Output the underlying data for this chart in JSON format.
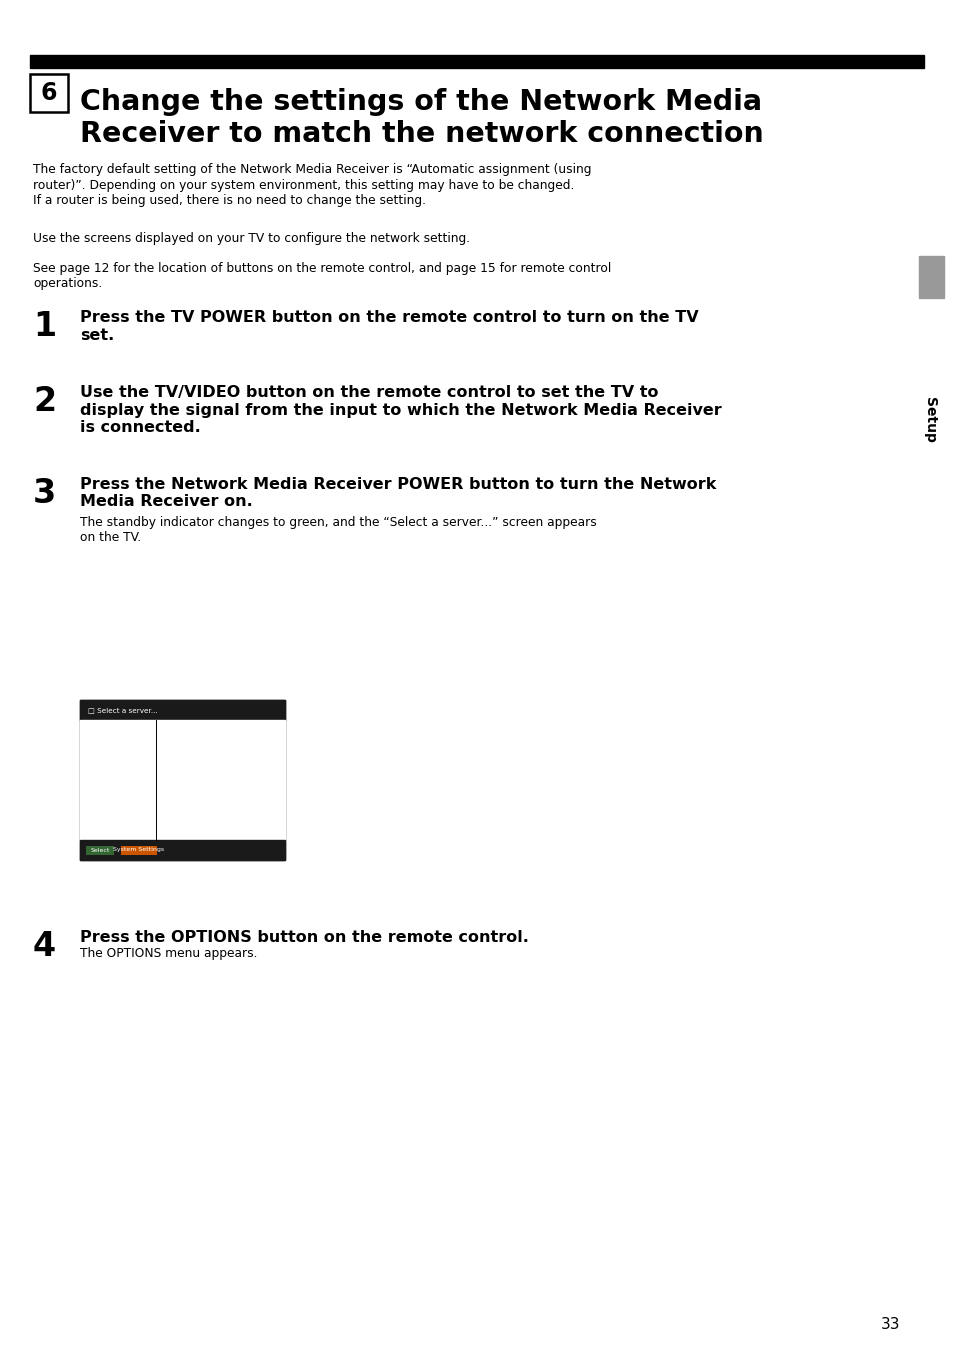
{
  "bg_color": "#ffffff",
  "black_bar_color": "#000000",
  "title_number": "6",
  "title_line1": "Change the settings of the Network Media",
  "title_line2": "Receiver to match the network connection",
  "para1_line1": "The factory default setting of the Network Media Receiver is “Automatic assignment (using",
  "para1_line2": "router)”. Depending on your system environment, this setting may have to be changed.",
  "para1_line3": "If a router is being used, there is no need to change the setting.",
  "para2": "Use the screens displayed on your TV to configure the network setting.",
  "para3_line1": "See page 12 for the location of buttons on the remote control, and page 15 for remote control",
  "para3_line2": "operations.",
  "step1_num": "1",
  "step1_bold_line1": "Press the TV POWER button on the remote control to turn on the TV",
  "step1_bold_line2": "set.",
  "step2_num": "2",
  "step2_bold_line1": "Use the TV/VIDEO button on the remote control to set the TV to",
  "step2_bold_line2": "display the signal from the input to which the Network Media Receiver",
  "step2_bold_line3": "is connected.",
  "step3_num": "3",
  "step3_bold_line1": "Press the Network Media Receiver POWER button to turn the Network",
  "step3_bold_line2": "Media Receiver on.",
  "step3_normal_line1": "The standby indicator changes to green, and the “Select a server...” screen appears",
  "step3_normal_line2": "on the TV.",
  "step4_num": "4",
  "step4_bold": "Press the OPTIONS button on the remote control.",
  "step4_normal": "The OPTIONS menu appears.",
  "sidebar_text": "Setup",
  "sidebar_color": "#999999",
  "page_number": "33",
  "screen_title_bar_text": "Select a server...",
  "screen_bottom_bar_text": "System Settings"
}
